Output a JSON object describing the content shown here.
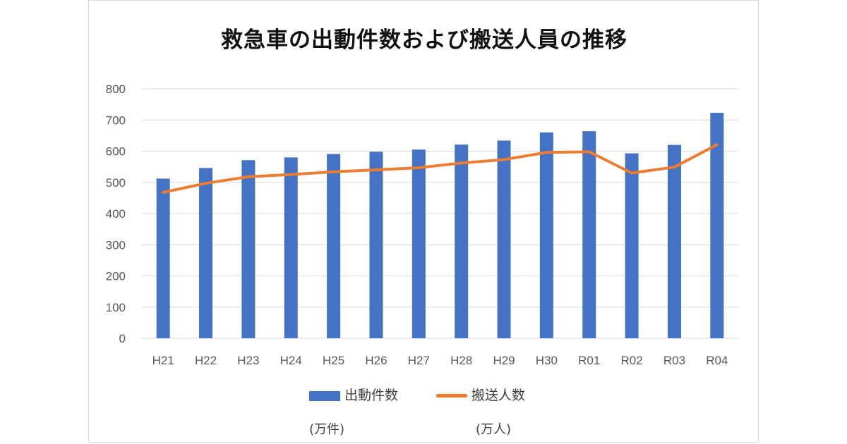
{
  "colors": {
    "bars": "#4472c4",
    "line": "#ed7d31",
    "grid": "#d9d9d9"
  },
  "chart_data": {
    "type": "bar",
    "title": "救急車の出動件数および搬送人員の推移",
    "categories": [
      "H21",
      "H22",
      "H23",
      "H24",
      "H25",
      "H26",
      "H27",
      "H28",
      "H29",
      "H30",
      "R01",
      "R02",
      "R03",
      "R04"
    ],
    "ylim": [
      0,
      800
    ],
    "yticks": [
      0,
      100,
      200,
      300,
      400,
      500,
      600,
      700,
      800
    ],
    "grid": true,
    "legend_position": "bottom",
    "series": [
      {
        "name": "出動件数",
        "unit": "(万件)",
        "type": "bar",
        "values": [
          512,
          546,
          571,
          580,
          591,
          598,
          605,
          621,
          634,
          660,
          664,
          593,
          620,
          723
        ]
      },
      {
        "name": "搬送人数",
        "unit": "(万人)",
        "type": "line",
        "values": [
          468,
          497,
          518,
          525,
          534,
          540,
          547,
          562,
          573,
          596,
          598,
          530,
          549,
          621
        ]
      }
    ]
  }
}
